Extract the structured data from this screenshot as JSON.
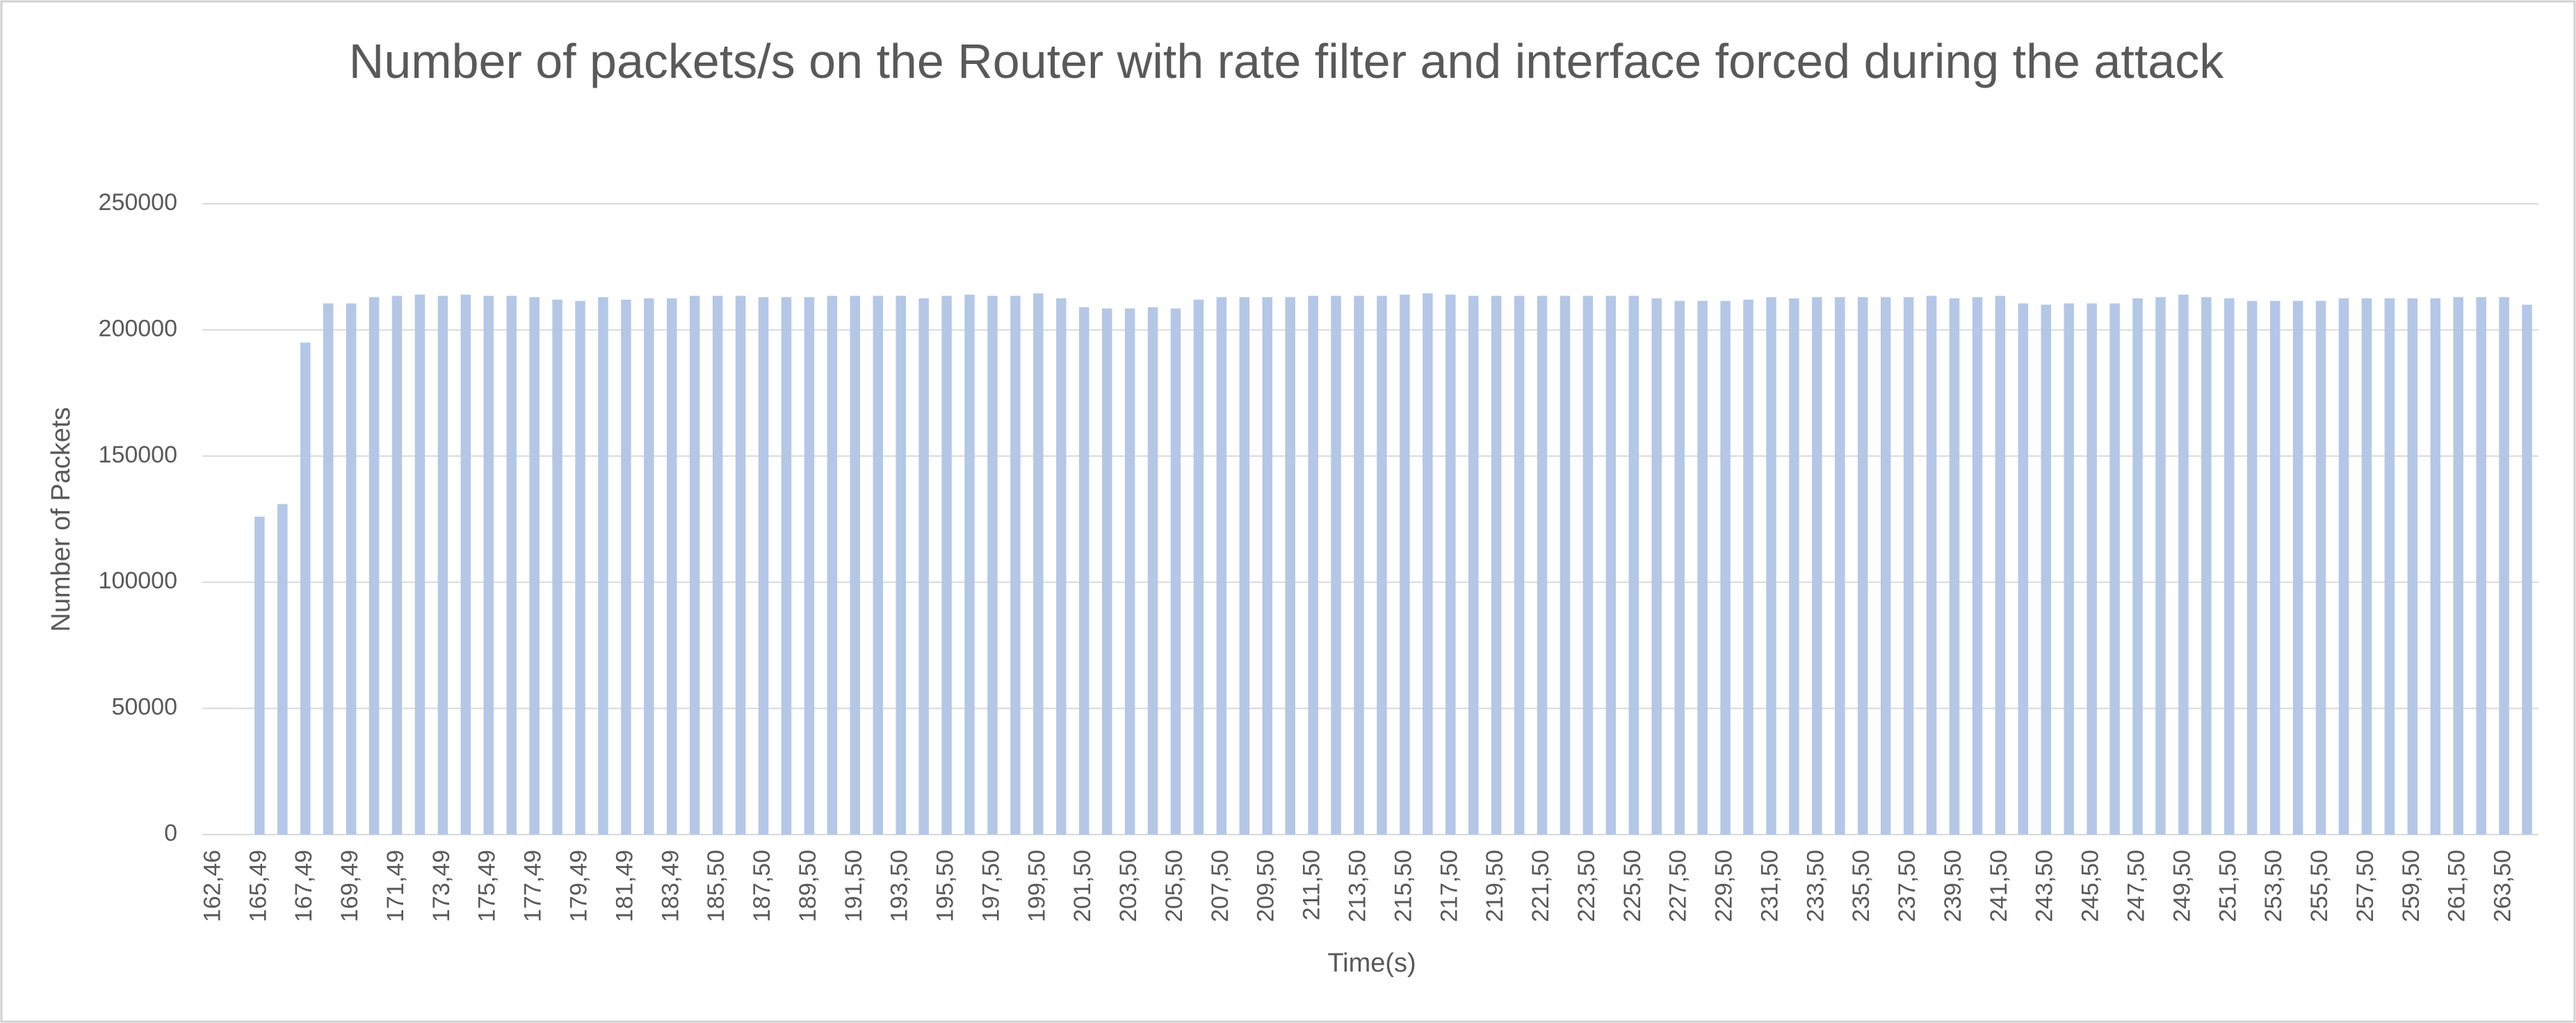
{
  "chart_data": {
    "type": "bar",
    "title": "Number of packets/s on the Router with rate filter and interface forced during the attack",
    "x_label": "Time(s)",
    "y_label": "Number of Packets",
    "categories": [
      "162,46",
      null,
      "165,49",
      null,
      "167,49",
      null,
      "169,49",
      null,
      "171,49",
      null,
      "173,49",
      null,
      "175,49",
      null,
      "177,49",
      null,
      "179,49",
      null,
      "181,49",
      null,
      "183,49",
      null,
      "185,50",
      null,
      "187,50",
      null,
      "189,50",
      null,
      "191,50",
      null,
      "193,50",
      null,
      "195,50",
      null,
      "197,50",
      null,
      "199,50",
      null,
      "201,50",
      null,
      "203,50",
      null,
      "205,50",
      null,
      "207,50",
      null,
      "209,50",
      null,
      "211,50",
      null,
      "213,50",
      null,
      "215,50",
      null,
      "217,50",
      null,
      "219,50",
      null,
      "221,50",
      null,
      "223,50",
      null,
      "225,50",
      null,
      "227,50",
      null,
      "229,50",
      null,
      "231,50",
      null,
      "233,50",
      null,
      "235,50",
      null,
      "237,50",
      null,
      "239,50",
      null,
      "241,50",
      null,
      "243,50",
      null,
      "245,50",
      null,
      "247,50",
      null,
      "249,50",
      null,
      "251,50",
      null,
      "253,50",
      null,
      "255,50",
      null,
      "257,50",
      null,
      "259,50",
      null,
      "261,50",
      null,
      "263,50",
      null
    ],
    "values": [
      null,
      null,
      126000,
      131000,
      195000,
      210500,
      210500,
      213000,
      213500,
      214000,
      213500,
      214000,
      213500,
      213500,
      213000,
      212000,
      211500,
      213000,
      212000,
      212500,
      212500,
      213500,
      213500,
      213500,
      213000,
      213000,
      213000,
      213500,
      213500,
      213500,
      213500,
      212500,
      213500,
      214000,
      213500,
      213500,
      214500,
      212500,
      209000,
      208500,
      208500,
      209000,
      208500,
      212000,
      213000,
      213000,
      213000,
      213000,
      213500,
      213500,
      213500,
      213500,
      214000,
      214500,
      214000,
      213500,
      213500,
      213500,
      213500,
      213500,
      213500,
      213500,
      213500,
      212500,
      211500,
      211500,
      211500,
      212000,
      213000,
      212500,
      213000,
      213000,
      213000,
      213000,
      213000,
      213500,
      212500,
      213000,
      213500,
      210500,
      210000,
      210500,
      210500,
      210500,
      212500,
      213000,
      214000,
      213000,
      212500,
      211500,
      211500,
      211500,
      211500,
      212500,
      212500,
      212500,
      212500,
      212500,
      213000,
      213000,
      213000,
      210000
    ],
    "color": "#b4c7e7",
    "ylim": [
      0,
      250000
    ],
    "yticks": [
      0,
      50000,
      100000,
      150000,
      200000,
      250000
    ],
    "grid": true
  }
}
